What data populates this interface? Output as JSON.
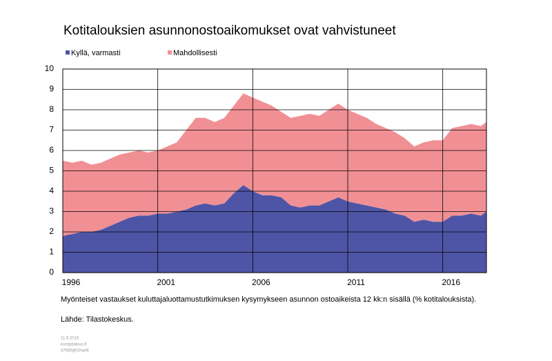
{
  "chart_data": {
    "type": "stacked-area",
    "title": "Kotitalouksien asunnonostoaikomukset ovat vahvistuneet",
    "caption": "Myönteiset vastaukset kuluttajaluottamustutkimuksen kysymykseen asunnon ostoaikeista 12 kk:n sisällä (% kotitalouksista).",
    "source": "Lähde: Tilastokeskus.",
    "notes": [
      "11.6.2019",
      "eurojatalous.fi",
      "37085@Chart6"
    ],
    "x": [
      1996,
      1996.5,
      1997,
      1997.5,
      1998,
      1998.5,
      1999,
      1999.5,
      2000,
      2000.5,
      2001,
      2001.5,
      2002,
      2002.5,
      2003,
      2003.5,
      2004,
      2004.5,
      2005,
      2005.5,
      2006,
      2006.5,
      2007,
      2007.5,
      2008,
      2008.5,
      2009,
      2009.5,
      2010,
      2010.5,
      2011,
      2011.5,
      2012,
      2012.5,
      2013,
      2013.5,
      2014,
      2014.5,
      2015,
      2015.5,
      2016,
      2016.5,
      2017,
      2017.5,
      2018,
      2018.3
    ],
    "series": [
      {
        "name": "Kyllä, varmasti",
        "color": "#4f55a6",
        "values": [
          1.8,
          1.9,
          2.0,
          2.0,
          2.1,
          2.3,
          2.5,
          2.7,
          2.8,
          2.8,
          2.9,
          2.9,
          3.0,
          3.1,
          3.3,
          3.4,
          3.3,
          3.4,
          3.9,
          4.3,
          4.0,
          3.8,
          3.8,
          3.7,
          3.3,
          3.2,
          3.3,
          3.3,
          3.5,
          3.7,
          3.5,
          3.4,
          3.3,
          3.2,
          3.1,
          2.9,
          2.8,
          2.5,
          2.6,
          2.5,
          2.5,
          2.8,
          2.8,
          2.9,
          2.8,
          3.0
        ]
      },
      {
        "name": "Mahdollisesti",
        "color": "#f09095",
        "values": [
          3.7,
          3.5,
          3.5,
          3.3,
          3.3,
          3.3,
          3.3,
          3.2,
          3.2,
          3.1,
          3.1,
          3.3,
          3.4,
          3.9,
          4.3,
          4.2,
          4.1,
          4.2,
          4.3,
          4.5,
          4.6,
          4.6,
          4.4,
          4.2,
          4.3,
          4.5,
          4.5,
          4.4,
          4.5,
          4.6,
          4.5,
          4.4,
          4.3,
          4.1,
          4.0,
          4.0,
          3.8,
          3.7,
          3.8,
          4.0,
          4.0,
          4.3,
          4.4,
          4.4,
          4.4,
          4.4
        ]
      }
    ],
    "xlim": [
      1996,
      2018.3
    ],
    "xticks": [
      1996,
      2001,
      2006,
      2011,
      2016
    ],
    "ylim": [
      0,
      10
    ],
    "yticks": [
      0,
      1,
      2,
      3,
      4,
      5,
      6,
      7,
      8,
      9,
      10
    ],
    "grid": true
  }
}
